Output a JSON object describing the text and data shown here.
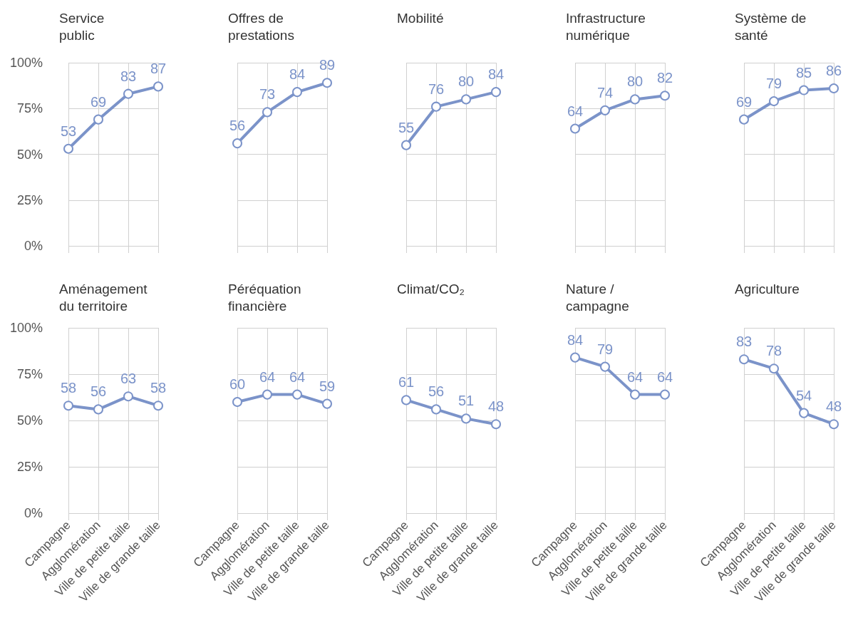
{
  "chart_data": [
    {
      "type": "line",
      "title": "Service\npublic",
      "categories": [
        null,
        null,
        null,
        null
      ],
      "series": [
        {
          "color": "#7b93c9",
          "values": [
            53,
            69,
            83,
            87
          ]
        }
      ],
      "ylim": [
        0,
        100
      ],
      "yticks": [
        {
          "value": 0,
          "label": "0%"
        },
        {
          "value": 25,
          "label": "25%"
        },
        {
          "value": 50,
          "label": "50%"
        },
        {
          "value": 75,
          "label": "75%"
        },
        {
          "value": 100,
          "label": "100%"
        }
      ],
      "grid": true,
      "data_labels": true,
      "marker": "circle",
      "tick_labels": "y"
    },
    {
      "type": "line",
      "title": "Offres de\nprestations",
      "categories": [
        null,
        null,
        null,
        null
      ],
      "series": [
        {
          "color": "#7b93c9",
          "values": [
            56,
            73,
            84,
            89
          ]
        }
      ],
      "grid": true,
      "data_labels": true,
      "marker": "circle",
      "tick_labels": false
    },
    {
      "type": "line",
      "title": "Mobilité",
      "categories": [
        null,
        null,
        null,
        null
      ],
      "series": [
        {
          "color": "#7b93c9",
          "values": [
            55,
            76,
            80,
            84
          ]
        }
      ],
      "grid": true,
      "data_labels": true,
      "marker": "circle",
      "tick_labels": false
    },
    {
      "type": "line",
      "title": "Infrastructure\nnumérique",
      "categories": [
        null,
        null,
        null,
        null
      ],
      "series": [
        {
          "color": "#7b93c9",
          "values": [
            64,
            74,
            80,
            82
          ]
        }
      ],
      "grid": true,
      "data_labels": true,
      "marker": "circle",
      "tick_labels": false
    },
    {
      "type": "line",
      "title": "Système de\nsanté",
      "categories": [
        null,
        null,
        null,
        null
      ],
      "series": [
        {
          "color": "#7b93c9",
          "values": [
            69,
            79,
            85,
            86
          ]
        }
      ],
      "grid": true,
      "data_labels": true,
      "marker": "circle",
      "tick_labels": false
    },
    {
      "type": "line",
      "title": "Aménagement\ndu territoire",
      "categories": [
        "Campagne",
        "Agglomération",
        "Ville de petite taille",
        "Ville de grande taille"
      ],
      "series": [
        {
          "color": "#7b93c9",
          "values": [
            58,
            56,
            63,
            58
          ]
        }
      ],
      "ylim": [
        0,
        100
      ],
      "yticks": [
        {
          "value": 0,
          "label": "0%"
        },
        {
          "value": 25,
          "label": "25%"
        },
        {
          "value": 50,
          "label": "50%"
        },
        {
          "value": 75,
          "label": "75%"
        },
        {
          "value": 100,
          "label": "100%"
        }
      ],
      "grid": true,
      "data_labels": true,
      "marker": "circle"
    },
    {
      "type": "line",
      "title": "Péréquation\nfinancière",
      "categories": [
        "Campagne",
        "Agglomération",
        "Ville de petite taille",
        "Ville de grande taille"
      ],
      "series": [
        {
          "color": "#7b93c9",
          "values": [
            60,
            64,
            64,
            59
          ]
        }
      ],
      "grid": true,
      "data_labels": true,
      "marker": "circle",
      "tick_labels": "x"
    },
    {
      "type": "line",
      "title": "Climat/CO₂",
      "categories": [
        "Campagne",
        "Agglomération",
        "Ville de petite taille",
        "Ville de grande taille"
      ],
      "series": [
        {
          "color": "#7b93c9",
          "values": [
            61,
            56,
            51,
            48
          ]
        }
      ],
      "grid": true,
      "data_labels": true,
      "marker": "circle",
      "tick_labels": "x"
    },
    {
      "type": "line",
      "title": "Nature /\ncampagne",
      "categories": [
        "Campagne",
        "Agglomération",
        "Ville de petite taille",
        "Ville de grande taille"
      ],
      "series": [
        {
          "color": "#7b93c9",
          "values": [
            84,
            79,
            64,
            64
          ]
        }
      ],
      "grid": true,
      "data_labels": true,
      "marker": "circle",
      "tick_labels": "x"
    },
    {
      "type": "line",
      "title": "Agriculture",
      "categories": [
        "Campagne",
        "Agglomération",
        "Ville de petite taille",
        "Ville de grande taille"
      ],
      "series": [
        {
          "color": "#7b93c9",
          "values": [
            83,
            78,
            54,
            48
          ]
        }
      ],
      "grid": true,
      "data_labels": true,
      "marker": "circle",
      "tick_labels": "x"
    }
  ]
}
